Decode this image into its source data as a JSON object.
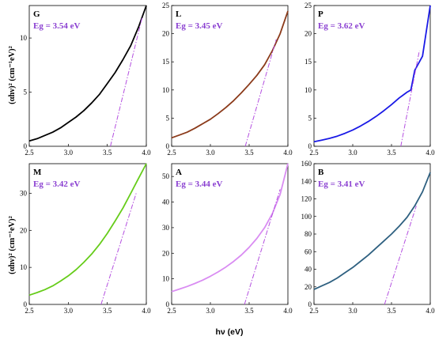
{
  "x_axis_label": "hν (eV)",
  "y_axis_label_top": "(αhν)² (cm⁻¹eV)²",
  "y_axis_label_bottom": "(αhν)² (cm⁻¹eV)²",
  "fit_line_color": "#b44fe0",
  "chart_data": [
    {
      "type": "line",
      "letter": "G",
      "eg_label": "Eg = 3.54 eV",
      "color": "#000000",
      "xlim": [
        2.5,
        4.0
      ],
      "ylim": [
        0,
        13
      ],
      "xticks": [
        "2.5",
        "3.0",
        "3.5",
        "4.0"
      ],
      "yticks": [
        0,
        5,
        10
      ],
      "series": [
        {
          "x": [
            2.5,
            2.6,
            2.7,
            2.8,
            2.9,
            3.0,
            3.1,
            3.2,
            3.3,
            3.4,
            3.5,
            3.6,
            3.7,
            3.8,
            3.9,
            4.0
          ],
          "y": [
            0.5,
            0.7,
            1.0,
            1.3,
            1.7,
            2.2,
            2.7,
            3.3,
            4.0,
            4.8,
            5.8,
            6.8,
            8.0,
            9.3,
            11.0,
            13.0
          ]
        }
      ],
      "fit_line": {
        "x": [
          3.54,
          3.95
        ],
        "y": [
          0,
          12.0
        ]
      }
    },
    {
      "type": "line",
      "letter": "L",
      "eg_label": "Eg = 3.45 eV",
      "color": "#8b3a1a",
      "xlim": [
        2.5,
        4.0
      ],
      "ylim": [
        0,
        25
      ],
      "xticks": [
        "2.5",
        "3.0",
        "3.5",
        "4.0"
      ],
      "yticks": [
        0,
        5,
        10,
        15,
        20,
        25
      ],
      "series": [
        {
          "x": [
            2.5,
            2.6,
            2.7,
            2.8,
            2.9,
            3.0,
            3.1,
            3.2,
            3.3,
            3.4,
            3.5,
            3.6,
            3.7,
            3.8,
            3.9,
            4.0
          ],
          "y": [
            1.5,
            2.0,
            2.5,
            3.2,
            4.0,
            4.8,
            5.8,
            6.9,
            8.1,
            9.5,
            11.0,
            12.6,
            14.5,
            17.0,
            20.0,
            24.0
          ]
        }
      ],
      "fit_line": {
        "x": [
          3.45,
          3.85
        ],
        "y": [
          0,
          19.0
        ]
      }
    },
    {
      "type": "line",
      "letter": "P",
      "eg_label": "Eg = 3.62 eV",
      "color": "#1a1ae6",
      "xlim": [
        2.5,
        4.0
      ],
      "ylim": [
        0,
        25
      ],
      "xticks": [
        "2.5",
        "3.0",
        "3.5",
        "4.0"
      ],
      "yticks": [
        0,
        5,
        10,
        15,
        20,
        25
      ],
      "series": [
        {
          "x": [
            2.5,
            2.6,
            2.7,
            2.8,
            2.9,
            3.0,
            3.1,
            3.2,
            3.3,
            3.4,
            3.5,
            3.6,
            3.7,
            3.75,
            3.8,
            3.9,
            4.0
          ],
          "y": [
            0.8,
            1.1,
            1.4,
            1.8,
            2.3,
            2.9,
            3.6,
            4.4,
            5.3,
            6.3,
            7.4,
            8.6,
            9.6,
            10.0,
            13.5,
            16.0,
            25.0
          ]
        }
      ],
      "fit_line": {
        "x": [
          3.62,
          3.86
        ],
        "y": [
          0,
          17.0
        ]
      }
    },
    {
      "type": "line",
      "letter": "M",
      "eg_label": "Eg = 3.42 eV",
      "color": "#66cc1a",
      "xlim": [
        2.5,
        4.0
      ],
      "ylim": [
        0,
        38
      ],
      "xticks": [
        "2.5",
        "3.0",
        "3.5",
        "4.0"
      ],
      "yticks": [
        0,
        10,
        20,
        30
      ],
      "series": [
        {
          "x": [
            2.5,
            2.6,
            2.7,
            2.8,
            2.9,
            3.0,
            3.1,
            3.2,
            3.3,
            3.4,
            3.5,
            3.6,
            3.7,
            3.8,
            3.9,
            4.0
          ],
          "y": [
            2.5,
            3.2,
            4.0,
            5.0,
            6.3,
            7.7,
            9.4,
            11.4,
            13.6,
            16.2,
            19.2,
            22.5,
            26.0,
            30.0,
            34.0,
            38.0
          ]
        }
      ],
      "fit_line": {
        "x": [
          3.42,
          3.87
        ],
        "y": [
          0,
          30.0
        ]
      }
    },
    {
      "type": "line",
      "letter": "A",
      "eg_label": "Eg = 3.44 eV",
      "color": "#d98cf2",
      "xlim": [
        2.5,
        4.0
      ],
      "ylim": [
        0,
        55
      ],
      "xticks": [
        "2.5",
        "3.0",
        "3.5",
        "4.0"
      ],
      "yticks": [
        0,
        10,
        20,
        30,
        40,
        50
      ],
      "series": [
        {
          "x": [
            2.5,
            2.6,
            2.7,
            2.8,
            2.9,
            3.0,
            3.1,
            3.2,
            3.3,
            3.4,
            3.5,
            3.6,
            3.7,
            3.8,
            3.9,
            4.0
          ],
          "y": [
            5.0,
            6.0,
            7.0,
            8.2,
            9.5,
            11.0,
            12.7,
            14.6,
            16.8,
            19.3,
            22.3,
            25.8,
            30.0,
            35.5,
            43.0,
            55.0
          ]
        }
      ],
      "fit_line": {
        "x": [
          3.44,
          3.9
        ],
        "y": [
          0,
          45.0
        ]
      }
    },
    {
      "type": "line",
      "letter": "B",
      "eg_label": "Eg = 3.41 eV",
      "color": "#2e6080",
      "xlim": [
        2.5,
        4.0
      ],
      "ylim": [
        0,
        160
      ],
      "xticks": [
        "2.5",
        "3.0",
        "3.5",
        "4.0"
      ],
      "yticks": [
        0,
        20,
        40,
        60,
        80,
        100,
        120,
        140,
        160
      ],
      "series": [
        {
          "x": [
            2.5,
            2.6,
            2.7,
            2.8,
            2.9,
            3.0,
            3.1,
            3.2,
            3.3,
            3.4,
            3.5,
            3.6,
            3.7,
            3.8,
            3.9,
            4.0
          ],
          "y": [
            17,
            21,
            25,
            30,
            36,
            42,
            49,
            56,
            64,
            72,
            80,
            89,
            99,
            112,
            128,
            150
          ]
        }
      ],
      "fit_line": {
        "x": [
          3.41,
          3.82
        ],
        "y": [
          0,
          112
        ]
      }
    }
  ]
}
